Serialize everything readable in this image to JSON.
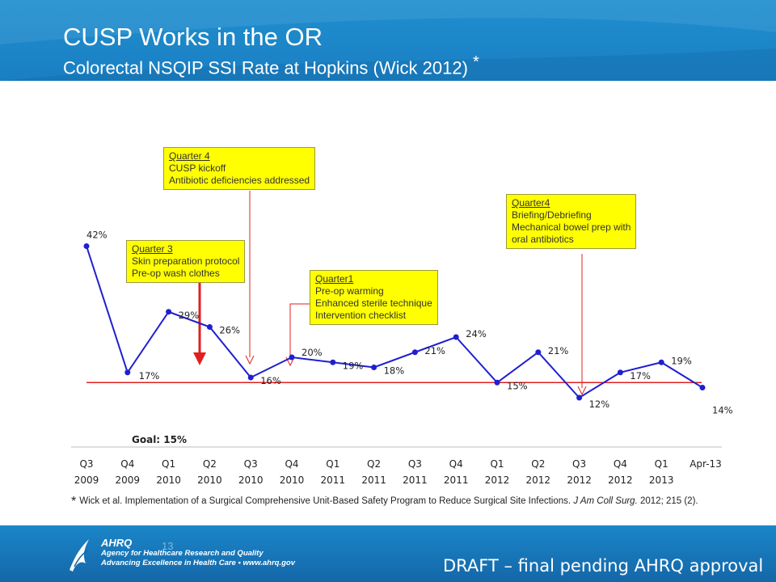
{
  "slide": {
    "title": "CUSP Works in the OR",
    "subtitle": "Colorectal NSQIP SSI Rate at Hopkins (Wick 2012)",
    "subtitle_mark": "*",
    "page_number": "13",
    "draft_label": "DRAFT – final pending AHRQ approval",
    "footnote": {
      "mark": "*",
      "text": "Wick et al. Implementation of a Surgical Comprehensive Unit-Based Safety Program to Reduce Surgical Site Infections.",
      "journal": "J Am Coll Surg.",
      "citation": "2012; 215 (2)."
    },
    "org": {
      "brand": "AHRQ",
      "line1": "Agency for Healthcare Research and Quality",
      "line2": "Advancing Excellence in Health Care • www.ahrq.gov"
    }
  },
  "annotations": [
    {
      "head": "Quarter 4",
      "lines": [
        "CUSP kickoff",
        "Antibiotic deficiencies addressed"
      ]
    },
    {
      "head": "Quarter 3",
      "lines": [
        "Skin preparation protocol",
        "Pre-op wash clothes"
      ]
    },
    {
      "head": "Quarter1",
      "lines": [
        "Pre-op warming",
        "Enhanced sterile technique",
        "Intervention checklist"
      ]
    },
    {
      "head": "Quarter4",
      "lines": [
        "Briefing/Debriefing",
        "Mechanical bowel  prep with",
        "oral antibiotics"
      ]
    }
  ],
  "colors": {
    "line": "#1f1fd0",
    "goal": "#e02020",
    "box": "#ffff00",
    "header": "#1a80c4"
  },
  "chart_data": {
    "type": "line",
    "categories": [
      [
        "Q3",
        "2009"
      ],
      [
        "Q4",
        "2009"
      ],
      [
        "Q1",
        "2010"
      ],
      [
        "Q2",
        "2010"
      ],
      [
        "Q3",
        "2010"
      ],
      [
        "Q4",
        "2010"
      ],
      [
        "Q1",
        "2011"
      ],
      [
        "Q2",
        "2011"
      ],
      [
        "Q3",
        "2011"
      ],
      [
        "Q4",
        "2011"
      ],
      [
        "Q1",
        "2012"
      ],
      [
        "Q2",
        "2012"
      ],
      [
        "Q3",
        "2012"
      ],
      [
        "Q4",
        "2012"
      ],
      [
        "Q1",
        "2013"
      ],
      [
        "Apr-13",
        ""
      ]
    ],
    "values": [
      42,
      17,
      29,
      26,
      16,
      20,
      19,
      18,
      21,
      24,
      15,
      21,
      12,
      17,
      19,
      14
    ],
    "data_labels": [
      "42%",
      "17%",
      "29%",
      "26%",
      "16%",
      "20%",
      "19%",
      "18%",
      "21%",
      "24%",
      "15%",
      "21%",
      "12%",
      "17%",
      "19%",
      "14%"
    ],
    "goal_value": 15,
    "goal_label": "Goal: 15%",
    "ylim": [
      10,
      45
    ],
    "grid": false
  }
}
